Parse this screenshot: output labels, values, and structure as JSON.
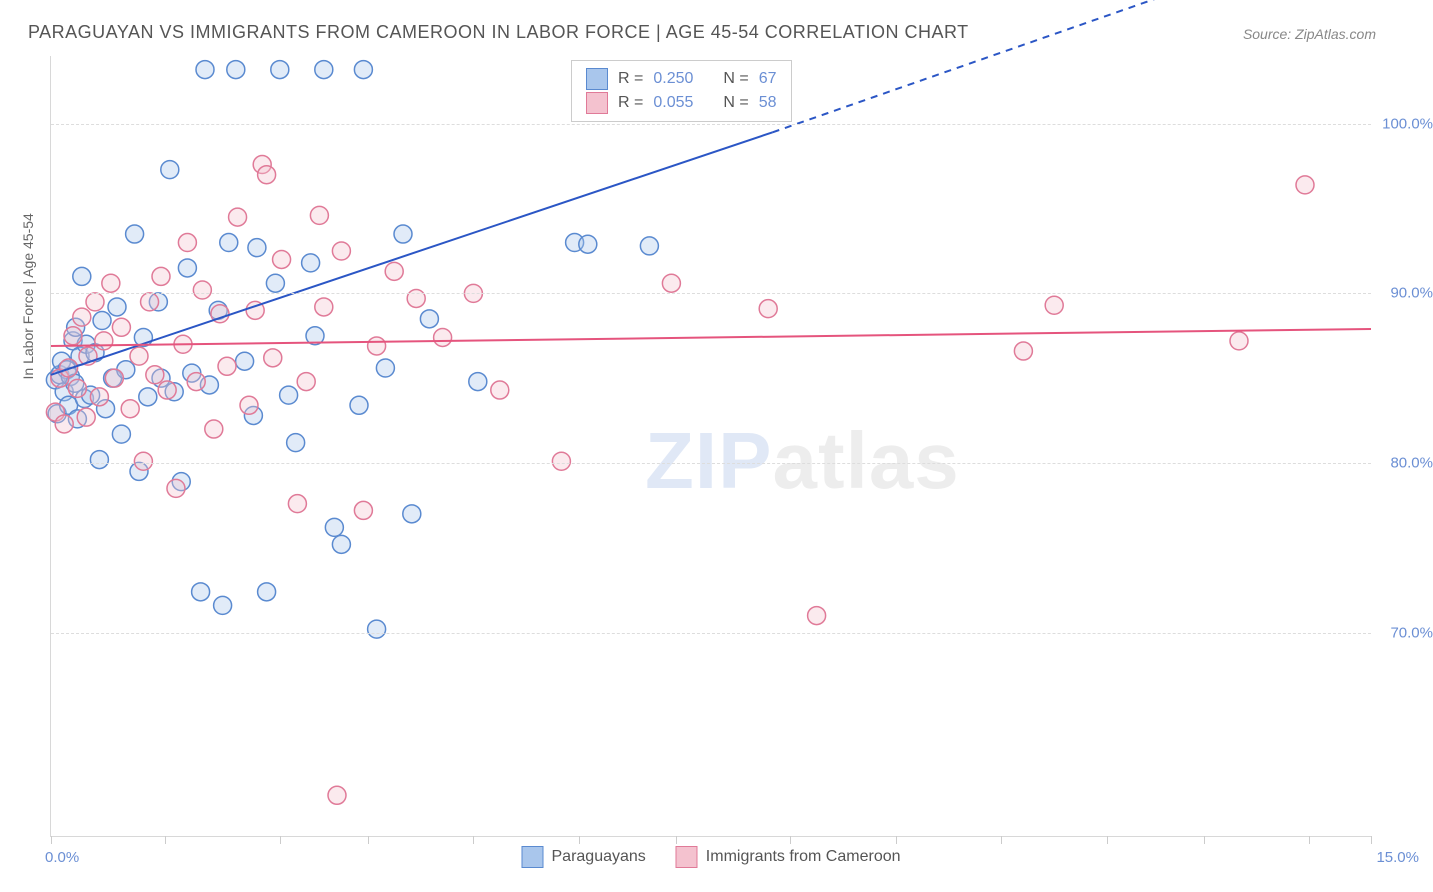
{
  "title": "PARAGUAYAN VS IMMIGRANTS FROM CAMEROON IN LABOR FORCE | AGE 45-54 CORRELATION CHART",
  "source": "Source: ZipAtlas.com",
  "ylabel": "In Labor Force | Age 45-54",
  "watermark": {
    "zip": "ZIP",
    "atlas": "atlas"
  },
  "chart": {
    "type": "scatter",
    "background_color": "#ffffff",
    "grid_color": "#dddddd",
    "axis_color": "#d8d8d8",
    "label_color": "#666666",
    "tick_label_color": "#6b8fd4",
    "title_fontsize": 18,
    "label_fontsize": 14,
    "tick_fontsize": 15,
    "xlim": [
      0,
      15
    ],
    "ylim": [
      58,
      104
    ],
    "y_ticks": [
      70,
      80,
      90,
      100
    ],
    "y_tick_labels": [
      "70.0%",
      "80.0%",
      "90.0%",
      "100.0%"
    ],
    "x_tick_positions": [
      0,
      1.3,
      2.6,
      3.6,
      4.8,
      6.0,
      7.1,
      8.4,
      9.6,
      10.8,
      12.0,
      13.1,
      14.3,
      15.0
    ],
    "xlim_labels": {
      "min": "0.0%",
      "max": "15.0%"
    },
    "marker_radius": 9,
    "marker_stroke_width": 1.5,
    "marker_fill_opacity": 0.35,
    "line_width": 2,
    "series": [
      {
        "name": "Paraguayans",
        "color_fill": "#a9c6ec",
        "color_stroke": "#5a8ad0",
        "line_color": "#2b56c5",
        "R": "0.250",
        "N": "67",
        "trend": {
          "x1": 0,
          "y1": 85.2,
          "x2": 8.2,
          "y2": 99.5,
          "extend_x": 14.0,
          "extend_y": 110.0
        },
        "points": [
          [
            0.05,
            84.9
          ],
          [
            0.07,
            82.9
          ],
          [
            0.1,
            85.2
          ],
          [
            0.12,
            86.0
          ],
          [
            0.15,
            84.2
          ],
          [
            0.18,
            85.5
          ],
          [
            0.2,
            83.4
          ],
          [
            0.22,
            85.1
          ],
          [
            0.25,
            87.2
          ],
          [
            0.27,
            84.7
          ],
          [
            0.28,
            88.0
          ],
          [
            0.3,
            82.6
          ],
          [
            0.33,
            86.3
          ],
          [
            0.35,
            91.0
          ],
          [
            0.38,
            83.8
          ],
          [
            0.4,
            87.0
          ],
          [
            0.45,
            84.0
          ],
          [
            0.5,
            86.5
          ],
          [
            0.55,
            80.2
          ],
          [
            0.58,
            88.4
          ],
          [
            0.62,
            83.2
          ],
          [
            0.7,
            85.0
          ],
          [
            0.75,
            89.2
          ],
          [
            0.8,
            81.7
          ],
          [
            0.85,
            85.5
          ],
          [
            0.95,
            93.5
          ],
          [
            1.0,
            79.5
          ],
          [
            1.05,
            87.4
          ],
          [
            1.1,
            83.9
          ],
          [
            1.22,
            89.5
          ],
          [
            1.25,
            85.0
          ],
          [
            1.35,
            97.3
          ],
          [
            1.4,
            84.2
          ],
          [
            1.48,
            78.9
          ],
          [
            1.55,
            91.5
          ],
          [
            1.6,
            85.3
          ],
          [
            1.7,
            72.4
          ],
          [
            1.75,
            103.2
          ],
          [
            1.8,
            84.6
          ],
          [
            1.9,
            89.0
          ],
          [
            1.95,
            71.6
          ],
          [
            2.02,
            93.0
          ],
          [
            2.1,
            103.2
          ],
          [
            2.2,
            86.0
          ],
          [
            2.3,
            82.8
          ],
          [
            2.34,
            92.7
          ],
          [
            2.45,
            72.4
          ],
          [
            2.55,
            90.6
          ],
          [
            2.6,
            103.2
          ],
          [
            2.7,
            84.0
          ],
          [
            2.78,
            81.2
          ],
          [
            2.95,
            91.8
          ],
          [
            3.0,
            87.5
          ],
          [
            3.1,
            103.2
          ],
          [
            3.22,
            76.2
          ],
          [
            3.3,
            75.2
          ],
          [
            3.5,
            83.4
          ],
          [
            3.55,
            103.2
          ],
          [
            3.7,
            70.2
          ],
          [
            3.8,
            85.6
          ],
          [
            4.0,
            93.5
          ],
          [
            4.1,
            77.0
          ],
          [
            4.3,
            88.5
          ],
          [
            4.85,
            84.8
          ],
          [
            5.95,
            93.0
          ],
          [
            6.1,
            92.9
          ],
          [
            6.8,
            92.8
          ]
        ]
      },
      {
        "name": "Immigrants from Cameroon",
        "color_fill": "#f4c2cf",
        "color_stroke": "#e07a98",
        "line_color": "#e5547d",
        "R": "0.055",
        "N": "58",
        "trend": {
          "x1": 0,
          "y1": 86.9,
          "x2": 15,
          "y2": 87.9,
          "extend_x": 15,
          "extend_y": 87.9
        },
        "points": [
          [
            0.05,
            83.0
          ],
          [
            0.1,
            85.0
          ],
          [
            0.15,
            82.3
          ],
          [
            0.2,
            85.6
          ],
          [
            0.25,
            87.5
          ],
          [
            0.3,
            84.4
          ],
          [
            0.35,
            88.6
          ],
          [
            0.4,
            82.7
          ],
          [
            0.42,
            86.3
          ],
          [
            0.5,
            89.5
          ],
          [
            0.55,
            83.9
          ],
          [
            0.6,
            87.2
          ],
          [
            0.68,
            90.6
          ],
          [
            0.72,
            85.0
          ],
          [
            0.8,
            88.0
          ],
          [
            0.9,
            83.2
          ],
          [
            1.0,
            86.3
          ],
          [
            1.05,
            80.1
          ],
          [
            1.12,
            89.5
          ],
          [
            1.18,
            85.2
          ],
          [
            1.25,
            91.0
          ],
          [
            1.32,
            84.3
          ],
          [
            1.42,
            78.5
          ],
          [
            1.5,
            87.0
          ],
          [
            1.55,
            93.0
          ],
          [
            1.65,
            84.8
          ],
          [
            1.72,
            90.2
          ],
          [
            1.85,
            82.0
          ],
          [
            1.92,
            88.8
          ],
          [
            2.0,
            85.7
          ],
          [
            2.12,
            94.5
          ],
          [
            2.25,
            83.4
          ],
          [
            2.32,
            89.0
          ],
          [
            2.4,
            97.6
          ],
          [
            2.45,
            97.0
          ],
          [
            2.52,
            86.2
          ],
          [
            2.62,
            92.0
          ],
          [
            2.8,
            77.6
          ],
          [
            2.9,
            84.8
          ],
          [
            3.05,
            94.6
          ],
          [
            3.1,
            89.2
          ],
          [
            3.25,
            60.4
          ],
          [
            3.3,
            92.5
          ],
          [
            3.55,
            77.2
          ],
          [
            3.7,
            86.9
          ],
          [
            3.9,
            91.3
          ],
          [
            4.15,
            89.7
          ],
          [
            4.45,
            87.4
          ],
          [
            4.8,
            90.0
          ],
          [
            5.1,
            84.3
          ],
          [
            5.8,
            80.1
          ],
          [
            7.05,
            90.6
          ],
          [
            8.15,
            89.1
          ],
          [
            8.7,
            71.0
          ],
          [
            11.05,
            86.6
          ],
          [
            11.4,
            89.3
          ],
          [
            13.5,
            87.2
          ],
          [
            14.25,
            96.4
          ]
        ]
      }
    ]
  },
  "legend_bottom": {
    "series1_label": "Paraguayans",
    "series2_label": "Immigrants from Cameroon"
  }
}
